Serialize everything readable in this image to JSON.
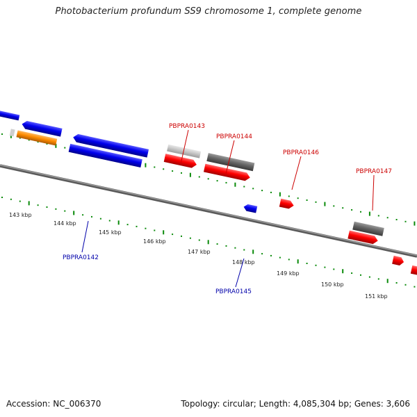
{
  "title": "Photobacterium profundum SS9 chromosome 1, complete genome",
  "footer": {
    "accession": "Accession: NC_006370",
    "summary": "Topology: circular; Length: 4,085,304 bp; Genes: 3,606"
  },
  "colors": {
    "forward_gene": "#ff0000",
    "reverse_gene": "#0000ee",
    "rna_gene": "#ff8c00",
    "dark_gray_feature": "#666666",
    "light_gray_feature": "#c8c8c8",
    "ruler_ticks": "#0a8a0a",
    "backbone": "#7a7a7a"
  },
  "scale_labels": [
    "143 kbp",
    "144 kbp",
    "145 kbp",
    "146 kbp",
    "147 kbp",
    "148 kbp",
    "149 kbp",
    "150 kbp",
    "151 kbp"
  ],
  "gene_labels": [
    {
      "id": "gene-label-pbpra0143",
      "text": "PBPRA0143",
      "color": "#cc0000"
    },
    {
      "id": "gene-label-pbpra0144",
      "text": "PBPRA0144",
      "color": "#cc0000"
    },
    {
      "id": "gene-label-pbpra0146",
      "text": "PBPRA0146",
      "color": "#cc0000"
    },
    {
      "id": "gene-label-pbpra0147",
      "text": "PBPRA0147",
      "color": "#cc0000"
    },
    {
      "id": "gene-label-pbpra0142",
      "text": "PBPRA0142",
      "color": "#0000aa"
    },
    {
      "id": "gene-label-pbpra0145",
      "text": "PBPRA0145",
      "color": "#0000aa"
    }
  ]
}
